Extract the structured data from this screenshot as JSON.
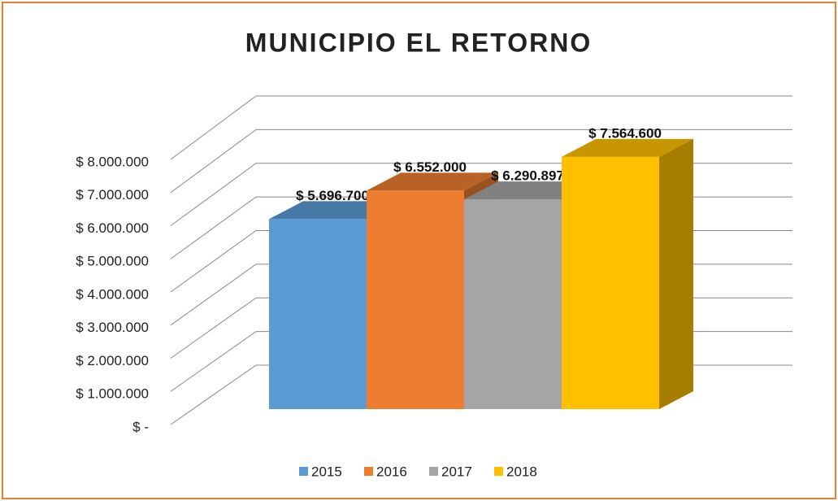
{
  "chart_data": {
    "type": "bar3d",
    "title": "MUNICIPIO EL RETORNO",
    "series": [
      {
        "name": "2015",
        "color": "#5b9bd5",
        "values": [
          5696700
        ],
        "value_labels": [
          "$ 5.696.700"
        ]
      },
      {
        "name": "2016",
        "color": "#ed7d31",
        "values": [
          6552000
        ],
        "value_labels": [
          "$ 6.552.000"
        ]
      },
      {
        "name": "2017",
        "color": "#a5a5a5",
        "values": [
          6290897
        ],
        "value_labels": [
          "$ 6.290.897"
        ]
      },
      {
        "name": "2018",
        "color": "#ffc000",
        "values": [
          7564600
        ],
        "value_labels": [
          "$ 7.564.600"
        ]
      }
    ],
    "ylim": [
      0,
      8000000
    ],
    "yticks": [
      {
        "value": 0,
        "label": "$ -"
      },
      {
        "value": 1000000,
        "label": "$ 1.000.000"
      },
      {
        "value": 2000000,
        "label": "$ 2.000.000"
      },
      {
        "value": 3000000,
        "label": "$ 3.000.000"
      },
      {
        "value": 4000000,
        "label": "$ 4.000.000"
      },
      {
        "value": 5000000,
        "label": "$ 5.000.000"
      },
      {
        "value": 6000000,
        "label": "$ 6.000.000"
      },
      {
        "value": 7000000,
        "label": "$ 7.000.000"
      },
      {
        "value": 8000000,
        "label": "$ 8.000.000"
      }
    ],
    "grid": true,
    "legend": "bottom"
  }
}
